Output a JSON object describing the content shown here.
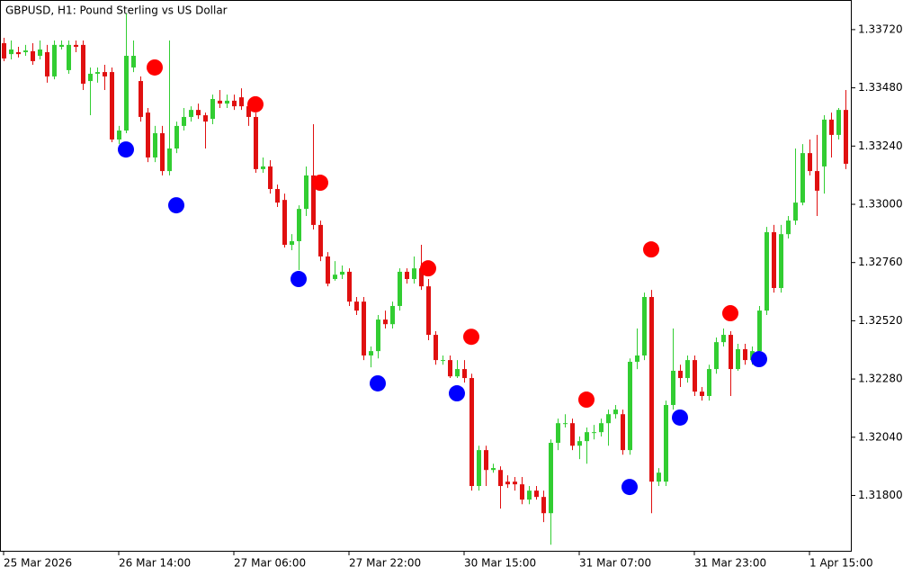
{
  "chart_data": {
    "type": "candlestick",
    "title": "GBPUSD, H1:  Pound Sterling vs US Dollar",
    "categories": [
      "25 Mar 2026",
      null,
      null,
      null,
      null,
      null,
      null,
      null,
      null,
      null,
      null,
      null,
      null,
      null,
      null,
      null,
      "26 Mar 14:00",
      null,
      null,
      null,
      null,
      null,
      null,
      null,
      null,
      null,
      null,
      null,
      null,
      null,
      null,
      null,
      "27 Mar 06:00",
      null,
      null,
      null,
      null,
      null,
      null,
      null,
      null,
      null,
      null,
      null,
      null,
      null,
      null,
      null,
      "27 Mar 22:00",
      null,
      null,
      null,
      null,
      null,
      null,
      null,
      null,
      null,
      null,
      null,
      null,
      null,
      null,
      null,
      "30 Mar 15:00",
      null,
      null,
      null,
      null,
      null,
      null,
      null,
      null,
      null,
      null,
      null,
      null,
      null,
      null,
      null,
      "31 Mar 07:00",
      null,
      null,
      null,
      null,
      null,
      null,
      null,
      null,
      null,
      null,
      null,
      null,
      null,
      null,
      null,
      "31 Mar 23:00",
      null,
      null,
      null,
      null,
      null,
      null,
      null,
      null,
      null,
      null,
      null,
      null,
      null,
      null,
      null,
      "1 Apr 15:00",
      null,
      null,
      null,
      null,
      null
    ],
    "open": [
      1.33664,
      1.33619,
      1.33627,
      1.33627,
      1.33631,
      1.33612,
      1.33627,
      1.33527,
      1.33649,
      1.33553,
      1.33657,
      1.33657,
      1.33508,
      1.33538,
      1.33545,
      1.33545,
      1.33267,
      1.33304,
      1.33564,
      1.33508,
      1.33378,
      1.33193,
      1.33293,
      1.33137,
      1.3323,
      1.33323,
      1.3336,
      1.33389,
      1.33367,
      1.33352,
      1.33427,
      1.33415,
      1.33427,
      1.33441,
      1.33404,
      1.3336,
      1.33145,
      1.33156,
      1.33063,
      1.33018,
      1.32833,
      1.32848,
      1.32981,
      1.33119,
      1.32915,
      1.32785,
      1.32692,
      1.3271,
      1.32722,
      1.32599,
      1.32599,
      1.32377,
      1.32395,
      1.32525,
      1.32506,
      1.32581,
      1.32722,
      1.32692,
      1.32736,
      1.32662,
      1.32462,
      1.32358,
      1.32358,
      1.32291,
      1.32321,
      1.32284,
      1.31839,
      1.31987,
      1.31905,
      1.31905,
      1.31857,
      1.31857,
      1.31846,
      1.31783,
      1.3182,
      1.31794,
      1.31727,
      1.32017,
      1.32098,
      1.32098,
      1.32005,
      1.32024,
      1.32061,
      1.32061,
      1.32098,
      1.32135,
      1.32135,
      1.31987,
      1.32351,
      1.32377,
      1.32618,
      1.31857,
      1.31857,
      1.32173,
      1.32314,
      1.32284,
      1.32358,
      1.32228,
      1.3221,
      1.32321,
      1.32432,
      1.32462,
      1.32321,
      1.32403,
      1.32358,
      1.32395,
      1.32562,
      1.32885,
      1.32655,
      1.32877,
      1.32933,
      1.33007,
      1.33211,
      1.33137,
      1.33156,
      1.33349,
      1.33286,
      1.33389
    ],
    "high": [
      1.33686,
      1.33675,
      1.33649,
      1.33657,
      1.33664,
      1.33675,
      1.33657,
      1.33675,
      1.33675,
      1.33675,
      1.33675,
      1.33675,
      1.33564,
      1.33564,
      1.33575,
      1.33564,
      1.33323,
      1.33786,
      1.33675,
      1.33527,
      1.33397,
      1.33323,
      1.33323,
      1.33675,
      1.33341,
      1.33397,
      1.33404,
      1.33415,
      1.33378,
      1.33452,
      1.33471,
      1.33452,
      1.33452,
      1.33478,
      1.33427,
      1.33378,
      1.33193,
      1.33182,
      1.33081,
      1.33044,
      1.32877,
      1.32996,
      1.33156,
      1.3333,
      1.32933,
      1.32803,
      1.32766,
      1.32748,
      1.32736,
      1.32618,
      1.32618,
      1.32414,
      1.32544,
      1.32562,
      1.32599,
      1.32736,
      1.32736,
      1.32785,
      1.32833,
      1.32692,
      1.32477,
      1.32377,
      1.32377,
      1.32358,
      1.32358,
      1.32302,
      1.32005,
      1.32005,
      1.31931,
      1.3192,
      1.31883,
      1.31876,
      1.31876,
      1.31839,
      1.31839,
      1.3182,
      1.32031,
      1.32117,
      1.32135,
      1.32117,
      1.32043,
      1.3208,
      1.32091,
      1.32117,
      1.32154,
      1.32173,
      1.32154,
      1.32365,
      1.32488,
      1.32636,
      1.32647,
      1.31913,
      1.32191,
      1.32488,
      1.32339,
      1.32377,
      1.32377,
      1.32247,
      1.32339,
      1.32451,
      1.32488,
      1.32477,
      1.32425,
      1.32425,
      1.32414,
      1.32581,
      1.32907,
      1.32915,
      1.32915,
      1.32952,
      1.3323,
      1.33248,
      1.33267,
      1.33286,
      1.33367,
      1.33378,
      1.33397,
      1.33471
    ],
    "low": [
      1.3359,
      1.33597,
      1.33605,
      1.33612,
      1.33575,
      1.33597,
      1.33501,
      1.33515,
      1.33638,
      1.33538,
      1.33627,
      1.33471,
      1.33367,
      1.33501,
      1.33471,
      1.33256,
      1.33248,
      1.33293,
      1.33545,
      1.33341,
      1.33174,
      1.33174,
      1.33119,
      1.33119,
      1.33211,
      1.33304,
      1.33341,
      1.33352,
      1.3323,
      1.3333,
      1.33397,
      1.33397,
      1.33389,
      1.33389,
      1.33323,
      1.3313,
      1.3313,
      1.33044,
      1.32989,
      1.32822,
      1.32811,
      1.32729,
      1.32952,
      1.32896,
      1.32766,
      1.32662,
      1.32685,
      1.32692,
      1.32581,
      1.32544,
      1.32358,
      1.32328,
      1.32365,
      1.32488,
      1.32488,
      1.32562,
      1.32673,
      1.32673,
      1.32647,
      1.3244,
      1.32339,
      1.32339,
      1.32284,
      1.32284,
      1.32265,
      1.3182,
      1.3182,
      1.31839,
      1.31894,
      1.31746,
      1.31831,
      1.3182,
      1.31764,
      1.31764,
      1.31783,
      1.3169,
      1.31597,
      1.31987,
      1.3208,
      1.31987,
      1.3195,
      1.31931,
      1.32031,
      1.32043,
      1.32005,
      1.32117,
      1.31968,
      1.31968,
      1.32321,
      1.32358,
      1.31727,
      1.31839,
      1.31839,
      1.32154,
      1.32247,
      1.32265,
      1.3221,
      1.32191,
      1.32191,
      1.32302,
      1.32414,
      1.3221,
      1.32314,
      1.32339,
      1.32339,
      1.32388,
      1.32544,
      1.32636,
      1.32636,
      1.32859,
      1.32915,
      1.32996,
      1.33119,
      1.32952,
      1.33044,
      1.33193,
      1.33267,
      1.33145
    ],
    "close": [
      1.33601,
      1.33638,
      1.33619,
      1.33634,
      1.3359,
      1.33638,
      1.33527,
      1.33657,
      1.33657,
      1.33657,
      1.33649,
      1.33497,
      1.33538,
      1.33545,
      1.33527,
      1.33267,
      1.33304,
      1.33612,
      1.33612,
      1.3336,
      1.33193,
      1.33293,
      1.33137,
      1.3323,
      1.33323,
      1.3336,
      1.33389,
      1.33367,
      1.33341,
      1.33434,
      1.33415,
      1.33427,
      1.33404,
      1.33404,
      1.3336,
      1.33145,
      1.33156,
      1.33063,
      1.33007,
      1.32833,
      1.32848,
      1.32981,
      1.33119,
      1.32915,
      1.32785,
      1.32673,
      1.3271,
      1.32722,
      1.32599,
      1.32562,
      1.32377,
      1.32395,
      1.32525,
      1.32506,
      1.32581,
      1.32722,
      1.32692,
      1.32736,
      1.32662,
      1.32462,
      1.32358,
      1.32358,
      1.32291,
      1.32321,
      1.32284,
      1.31839,
      1.31987,
      1.31905,
      1.31913,
      1.31839,
      1.31846,
      1.31846,
      1.31783,
      1.3182,
      1.31794,
      1.31727,
      1.32017,
      1.32098,
      1.32098,
      1.32005,
      1.32024,
      1.32061,
      1.32061,
      1.32098,
      1.32135,
      1.32154,
      1.31987,
      1.32351,
      1.32377,
      1.32618,
      1.31857,
      1.31894,
      1.32173,
      1.32314,
      1.32284,
      1.32358,
      1.32228,
      1.3221,
      1.32321,
      1.32432,
      1.32462,
      1.32321,
      1.32403,
      1.32358,
      1.32395,
      1.32562,
      1.32885,
      1.32655,
      1.32877,
      1.32933,
      1.33007,
      1.33211,
      1.33137,
      1.33056,
      1.33349,
      1.33286,
      1.33389,
      1.33167
    ],
    "up_color": "#32cd32",
    "down_color": "#e01010",
    "series": [
      {
        "color": "#ff0000",
        "x": [
          21,
          35,
          44,
          59,
          65,
          81,
          90,
          101
        ],
        "values": [
          1.33564,
          1.33412,
          1.33089,
          1.32736,
          1.32454,
          1.32195,
          1.32814,
          1.32551
        ]
      },
      {
        "color": "#0000ff",
        "x": [
          17,
          24,
          41,
          52,
          63,
          87,
          94,
          105
        ],
        "values": [
          1.33226,
          1.32996,
          1.32692,
          1.32262,
          1.32221,
          1.31835,
          1.32121,
          1.32362
        ]
      }
    ],
    "ylim": [
      1.31572,
      1.33842
    ],
    "yticks": [
      {
        "value": 1.3372,
        "label": "1.33720"
      },
      {
        "value": 1.3348,
        "label": "1.33480"
      },
      {
        "value": 1.3324,
        "label": "1.33240"
      },
      {
        "value": 1.33,
        "label": "1.33000"
      },
      {
        "value": 1.3276,
        "label": "1.32760"
      },
      {
        "value": 1.3252,
        "label": "1.32520"
      },
      {
        "value": 1.3228,
        "label": "1.32280"
      },
      {
        "value": 1.3204,
        "label": "1.32040"
      },
      {
        "value": 1.318,
        "label": "1.31800"
      }
    ],
    "grid": false
  }
}
